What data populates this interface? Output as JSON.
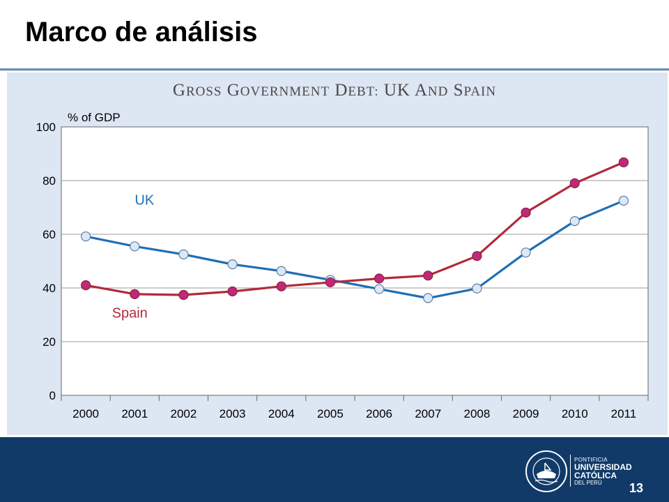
{
  "slide": {
    "title": "Marco de análisis",
    "page_number": "13"
  },
  "logo": {
    "motto": "ET LUX IN TENEBRIS LUCET",
    "line1": "PONTIFICIA",
    "line2": "UNIVERSIDAD",
    "line3": "CATÓLICA",
    "line4": "DEL PERÚ",
    "colors": {
      "ring": "#ffffff",
      "background": "#113a69"
    }
  },
  "chart_data": {
    "type": "line",
    "title": "Gross Government Debt: UK and Spain",
    "ylabel": "% of GDP",
    "xlabel": "",
    "ylim": [
      0,
      100
    ],
    "yticks": [
      0,
      20,
      40,
      60,
      80,
      100
    ],
    "x": [
      "2000",
      "2001",
      "2002",
      "2003",
      "2004",
      "2005",
      "2006",
      "2007",
      "2008",
      "2009",
      "2010",
      "2011"
    ],
    "grid": true,
    "series": [
      {
        "name": "UK",
        "color": "#1f6fb5",
        "marker_fill": "#dce8f5",
        "values": [
          59.2,
          55.5,
          52.5,
          48.8,
          46.3,
          43.0,
          39.6,
          36.2,
          39.8,
          53.2,
          64.9,
          72.5
        ]
      },
      {
        "name": "Spain",
        "color": "#b22a3a",
        "marker_fill": "#c0287a",
        "values": [
          41.0,
          37.7,
          37.4,
          38.7,
          40.6,
          42.1,
          43.5,
          44.6,
          51.9,
          68.1,
          79.0,
          86.8
        ]
      }
    ]
  }
}
